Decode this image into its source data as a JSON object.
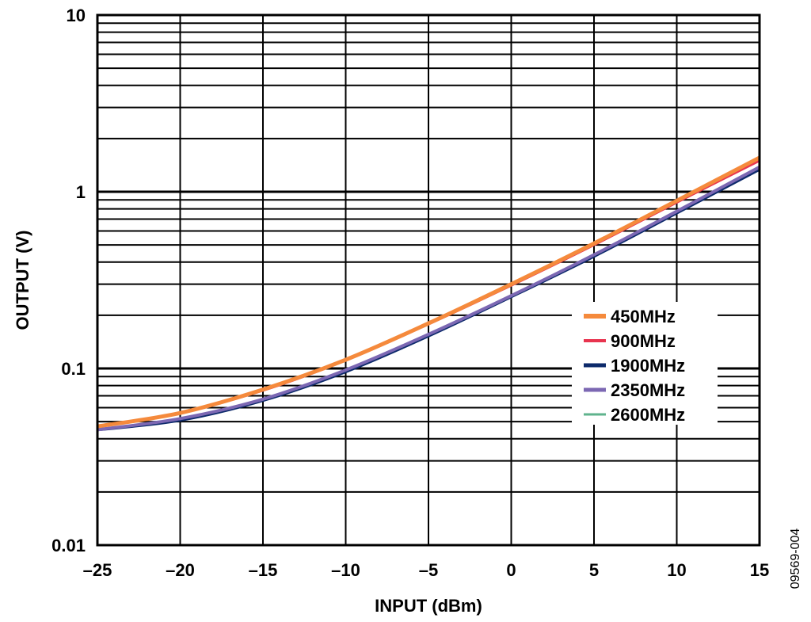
{
  "chart_data": {
    "type": "line",
    "xlabel": "INPUT (dBm)",
    "ylabel": "OUTPUT (V)",
    "xlim": [
      -25,
      15
    ],
    "ylim": [
      0.01,
      10
    ],
    "yscale": "log",
    "grid": true,
    "legend_placement": "center-right",
    "x_ticks": [
      -25,
      -20,
      -15,
      -10,
      -5,
      0,
      5,
      10,
      15
    ],
    "x_tick_labels": [
      "–25",
      "–20",
      "–15",
      "–10",
      "–5",
      "0",
      "5",
      "10",
      "15"
    ],
    "y_ticks": [
      0.01,
      0.1,
      1,
      10
    ],
    "y_tick_labels": [
      "0.01",
      "0.1",
      "1",
      "10"
    ],
    "x": [
      -25,
      -20,
      -15,
      -10,
      -5,
      0,
      5,
      10,
      15
    ],
    "series": [
      {
        "name": "450MHz",
        "color": "#f58a3c",
        "width": 5,
        "values": [
          0.047,
          0.056,
          0.076,
          0.112,
          0.18,
          0.3,
          0.51,
          0.89,
          1.56
        ]
      },
      {
        "name": "900MHz",
        "color": "#e8344f",
        "width": 3,
        "values": [
          0.047,
          0.056,
          0.075,
          0.111,
          0.178,
          0.295,
          0.5,
          0.87,
          1.5
        ]
      },
      {
        "name": "1900MHz",
        "color": "#0d2a6b",
        "width": 4,
        "values": [
          0.045,
          0.051,
          0.066,
          0.096,
          0.153,
          0.255,
          0.432,
          0.76,
          1.34
        ]
      },
      {
        "name": "2350MHz",
        "color": "#7c68b3",
        "width": 4,
        "values": [
          0.045,
          0.052,
          0.067,
          0.098,
          0.156,
          0.258,
          0.44,
          0.775,
          1.38
        ]
      },
      {
        "name": "2600MHz",
        "color": "#5fb38d",
        "width": 2,
        "values": [
          0.045,
          0.051,
          0.066,
          0.096,
          0.154,
          0.256,
          0.434,
          0.765,
          1.36
        ]
      }
    ]
  },
  "figure_id": "09569-004"
}
